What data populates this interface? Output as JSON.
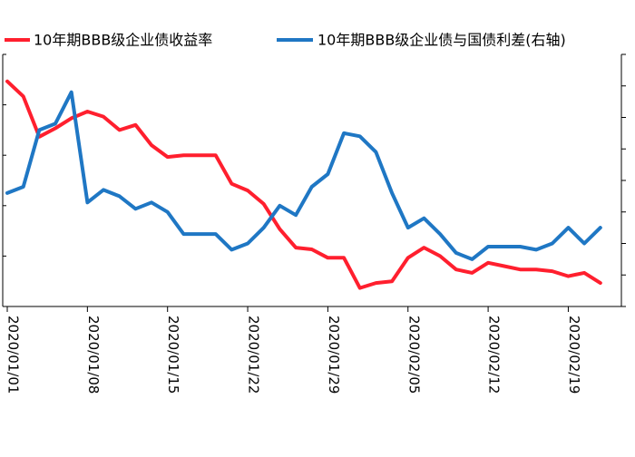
{
  "chart_data": {
    "type": "line",
    "x": [
      "2020/01/01",
      "2020/01/02",
      "2020/01/03",
      "2020/01/06",
      "2020/01/07",
      "2020/01/08",
      "2020/01/09",
      "2020/01/10",
      "2020/01/13",
      "2020/01/14",
      "2020/01/15",
      "2020/01/16",
      "2020/01/17",
      "2020/01/20",
      "2020/01/21",
      "2020/01/22",
      "2020/01/23",
      "2020/01/24",
      "2020/01/27",
      "2020/01/28",
      "2020/01/29",
      "2020/01/30",
      "2020/01/31",
      "2020/02/03",
      "2020/02/04",
      "2020/02/05",
      "2020/02/06",
      "2020/02/07",
      "2020/02/10",
      "2020/02/11",
      "2020/02/12",
      "2020/02/13",
      "2020/02/14",
      "2020/02/17",
      "2020/02/18",
      "2020/02/19",
      "2020/02/20",
      "2020/02/21"
    ],
    "x_ticks": [
      "2020/01/01",
      "2020/01/08",
      "2020/01/15",
      "2020/01/22",
      "2020/01/29",
      "2020/02/05",
      "2020/02/12",
      "2020/02/19"
    ],
    "series": [
      {
        "name": "10年期BBB级企业债收益率",
        "color": "#ff1f2e",
        "axis": "left",
        "values": [
          7.34,
          7.25,
          7.01,
          7.06,
          7.12,
          7.16,
          7.13,
          7.05,
          7.08,
          6.96,
          6.89,
          6.9,
          6.9,
          6.9,
          6.73,
          6.69,
          6.61,
          6.46,
          6.35,
          6.34,
          6.29,
          6.29,
          6.11,
          6.14,
          6.15,
          6.29,
          6.35,
          6.3,
          6.22,
          6.2,
          6.26,
          6.24,
          6.22,
          6.22,
          6.21,
          6.18,
          6.2,
          6.14
        ]
      },
      {
        "name": "10年期BBB级企业债与国债利差(右轴)",
        "color": "#1f77c4",
        "axis": "right",
        "values": [
          4.16,
          4.18,
          4.36,
          4.38,
          4.48,
          4.13,
          4.17,
          4.15,
          4.11,
          4.13,
          4.1,
          4.03,
          4.03,
          4.03,
          3.98,
          4.0,
          4.05,
          4.12,
          4.09,
          4.18,
          4.22,
          4.35,
          4.34,
          4.29,
          4.16,
          4.05,
          4.08,
          4.03,
          3.97,
          3.95,
          3.99,
          3.99,
          3.99,
          3.98,
          4.0,
          4.05,
          4.0,
          4.05
        ]
      }
    ],
    "grid": false,
    "legend": "top"
  }
}
